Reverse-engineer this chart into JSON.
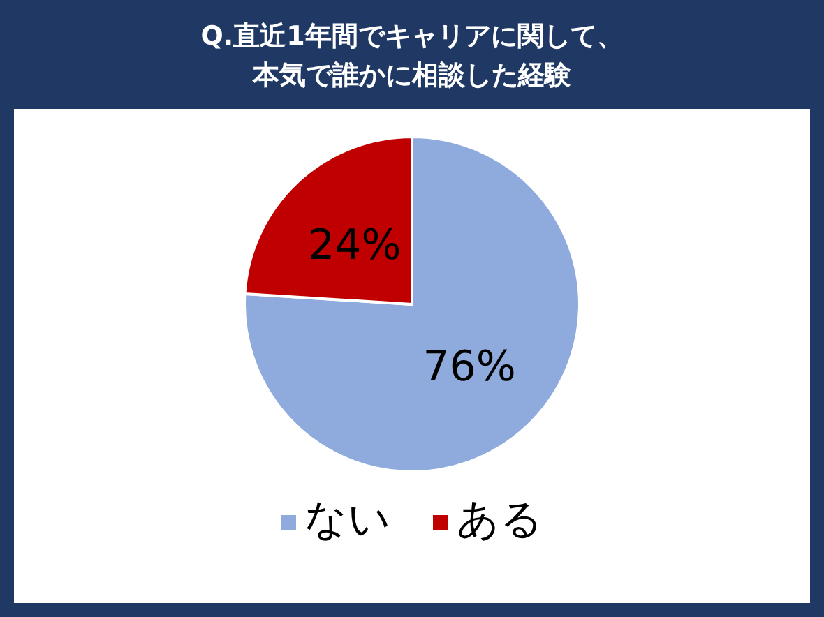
{
  "chart_data": {
    "type": "pie",
    "title": "Q.直近1年間でキャリアに関して、",
    "subtitle": "本気で誰かに相談した経験",
    "categories": [
      "ない",
      "ある"
    ],
    "values": [
      76,
      24
    ],
    "colors": [
      "#8faadc",
      "#c00000"
    ],
    "value_labels": [
      "76%",
      "24%"
    ],
    "legend": "bottom"
  }
}
